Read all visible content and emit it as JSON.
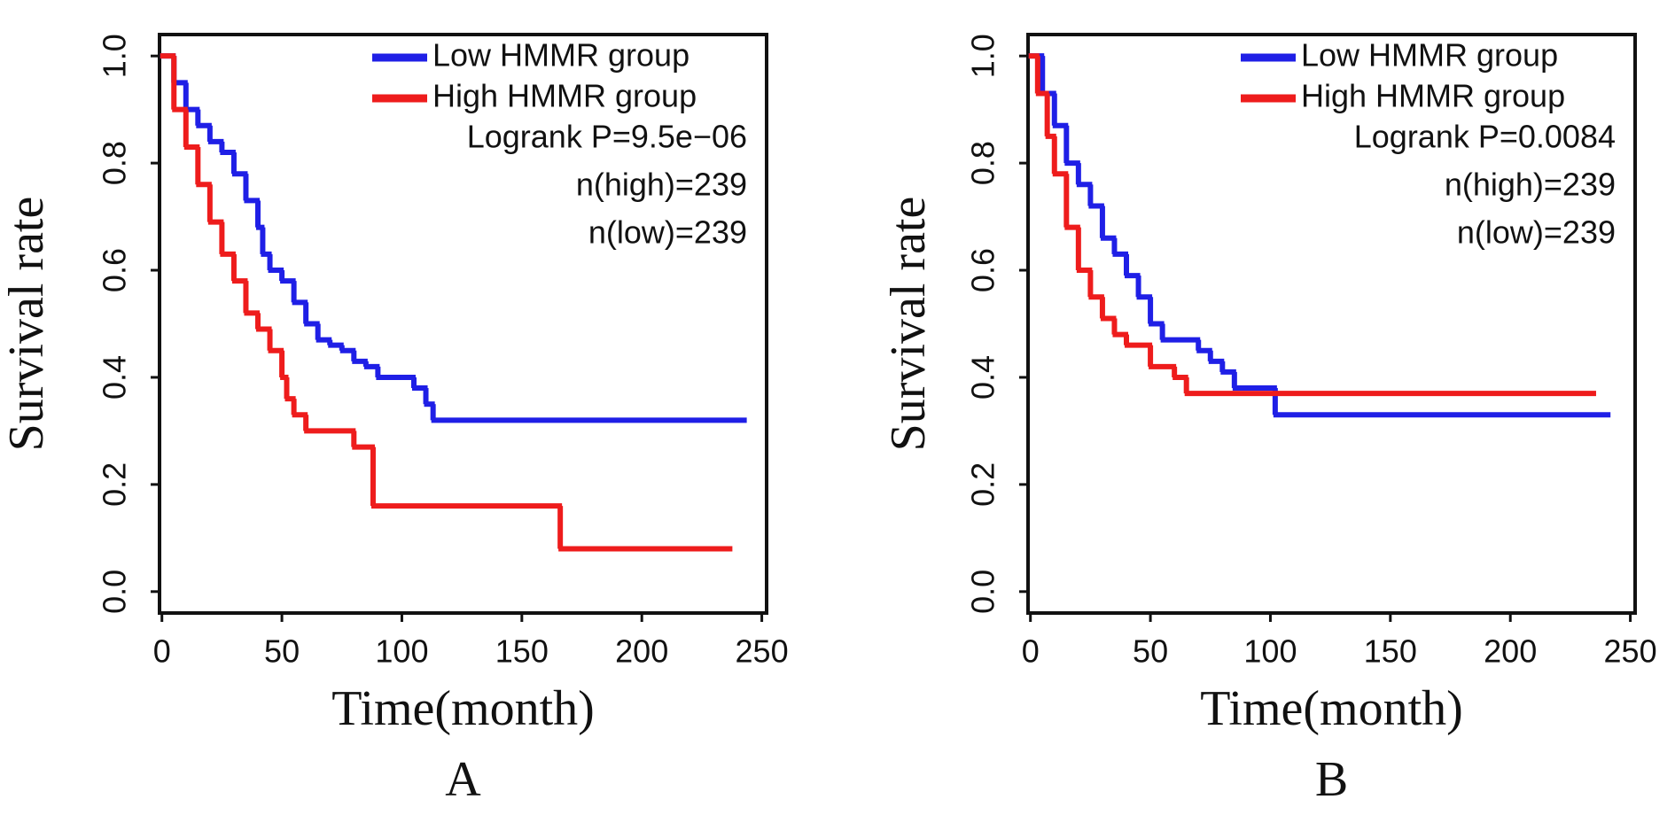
{
  "chart_data": [
    {
      "type": "step",
      "panel_label": "A",
      "xlabel": "Time(month)",
      "ylabel": "Survival rate",
      "xlim": [
        -1,
        252
      ],
      "ylim": [
        -0.04,
        1.04
      ],
      "xticks": [
        0,
        50,
        100,
        150,
        200,
        250
      ],
      "yticks": [
        {
          "value": 0,
          "label": "0.0"
        },
        0.2,
        0.4,
        0.6,
        0.8,
        {
          "value": 1,
          "label": "1.0"
        }
      ],
      "legend": "upper right",
      "annotations": [
        "Logrank P=9.5e−06",
        "n(high)=239",
        "n(low)=239"
      ],
      "series": [
        {
          "name": "Low HMMR group",
          "color": "#1f1fe6",
          "x": [
            0,
            5,
            10,
            15,
            20,
            25,
            30,
            35,
            40,
            42,
            45,
            50,
            55,
            60,
            65,
            70,
            75,
            80,
            85,
            90,
            100,
            105,
            110,
            113,
            243
          ],
          "values": [
            1,
            0.95,
            0.9,
            0.87,
            0.84,
            0.82,
            0.78,
            0.73,
            0.68,
            0.63,
            0.6,
            0.58,
            0.54,
            0.5,
            0.47,
            0.46,
            0.45,
            0.43,
            0.42,
            0.4,
            0.4,
            0.38,
            0.35,
            0.32,
            0.32
          ]
        },
        {
          "name": "High HMMR group",
          "color": "#ee1c1c",
          "x": [
            0,
            5,
            10,
            15,
            20,
            25,
            30,
            35,
            40,
            45,
            50,
            52,
            55,
            60,
            80,
            88,
            166,
            237
          ],
          "values": [
            1,
            0.9,
            0.83,
            0.76,
            0.69,
            0.63,
            0.58,
            0.52,
            0.49,
            0.45,
            0.4,
            0.36,
            0.33,
            0.3,
            0.27,
            0.16,
            0.08,
            0.08
          ]
        }
      ]
    },
    {
      "type": "step",
      "panel_label": "B",
      "xlabel": "Time(month)",
      "ylabel": "Survival rate",
      "xlim": [
        -1,
        252
      ],
      "ylim": [
        -0.04,
        1.04
      ],
      "xticks": [
        0,
        50,
        100,
        150,
        200,
        250
      ],
      "yticks": [
        {
          "value": 0,
          "label": "0.0"
        },
        0.2,
        0.4,
        0.6,
        0.8,
        {
          "value": 1,
          "label": "1.0"
        }
      ],
      "legend": "upper right",
      "annotations": [
        "Logrank P=0.0084",
        "n(high)=239",
        "n(low)=239"
      ],
      "series": [
        {
          "name": "Low HMMR group",
          "color": "#1f1fe6",
          "x": [
            0,
            5,
            10,
            15,
            20,
            25,
            30,
            35,
            40,
            45,
            50,
            55,
            70,
            75,
            80,
            85,
            102,
            241
          ],
          "values": [
            1,
            0.93,
            0.87,
            0.8,
            0.76,
            0.72,
            0.66,
            0.63,
            0.59,
            0.55,
            0.5,
            0.47,
            0.45,
            0.43,
            0.41,
            0.38,
            0.33,
            0.33
          ]
        },
        {
          "name": "High HMMR group",
          "color": "#ee1c1c",
          "x": [
            0,
            3,
            7,
            10,
            15,
            20,
            25,
            30,
            35,
            40,
            50,
            60,
            65,
            235
          ],
          "values": [
            1,
            0.93,
            0.85,
            0.78,
            0.68,
            0.6,
            0.55,
            0.51,
            0.48,
            0.46,
            0.42,
            0.4,
            0.37,
            0.37
          ]
        }
      ]
    }
  ]
}
